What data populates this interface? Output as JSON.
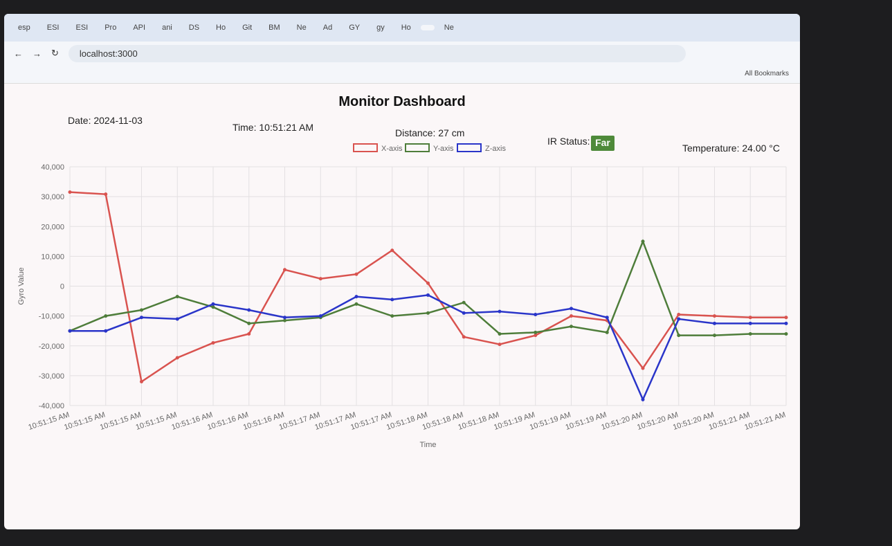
{
  "browser": {
    "tabs": [
      "esp",
      "ESI",
      "ESI",
      "Pro",
      "API",
      "ani",
      "DS",
      "Ho",
      "Git",
      "BM",
      "Ne",
      "Ad",
      "GY",
      "gy",
      "Ho",
      "",
      "Ne"
    ],
    "url": "localhost:3000",
    "bookmarks": "All Bookmarks"
  },
  "dashboard": {
    "title": "Monitor Dashboard",
    "date": "Date: 2024-11-03",
    "time": "Time: 10:51:21 AM",
    "distance": "Distance: 27 cm",
    "ir_label": "IR Status:",
    "ir_status": "Far",
    "temperature": "Temperature: 24.00 °C"
  },
  "chart_data": {
    "type": "line",
    "x_label": "Time",
    "y_label": "Gyro Value",
    "categories": [
      "10:51:15 AM",
      "10:51:15 AM",
      "10:51:15 AM",
      "10:51:15 AM",
      "10:51:16 AM",
      "10:51:16 AM",
      "10:51:16 AM",
      "10:51:17 AM",
      "10:51:17 AM",
      "10:51:17 AM",
      "10:51:18 AM",
      "10:51:18 AM",
      "10:51:18 AM",
      "10:51:19 AM",
      "10:51:19 AM",
      "10:51:19 AM",
      "10:51:20 AM",
      "10:51:20 AM",
      "10:51:20 AM",
      "10:51:21 AM",
      "10:51:21 AM"
    ],
    "series": [
      {
        "name": "X-axis",
        "color": "#d9534f",
        "values": [
          31500,
          30800,
          -32000,
          -24000,
          -19000,
          -16000,
          5500,
          2500,
          4000,
          12000,
          1000,
          -17000,
          -19500,
          -16500,
          -10000,
          -11500,
          -27500,
          -9500,
          -10000,
          -10500,
          -10500
        ]
      },
      {
        "name": "Y-axis",
        "color": "#4e7d3a",
        "values": [
          -15000,
          -10000,
          -8000,
          -3500,
          -7000,
          -12500,
          -11500,
          -10500,
          -6000,
          -10000,
          -9000,
          -5500,
          -16000,
          -15500,
          -13500,
          -15500,
          15000,
          -16500,
          -16500,
          -16000,
          -16000
        ]
      },
      {
        "name": "Z-axis",
        "color": "#2a35c9",
        "values": [
          -15000,
          -15000,
          -10500,
          -11000,
          -6000,
          -8000,
          -10500,
          -10000,
          -3500,
          -4500,
          -3000,
          -9000,
          -8500,
          -9500,
          -7500,
          -10500,
          -38000,
          -11000,
          -12500,
          -12500,
          -12500
        ]
      }
    ],
    "ylim": [
      -40000,
      40000
    ],
    "yticks": [
      {
        "value": -40000,
        "label": "-40,000"
      },
      {
        "value": -30000,
        "label": "-30,000"
      },
      {
        "value": -20000,
        "label": "-20,000"
      },
      {
        "value": -10000,
        "label": "-10,000"
      },
      0,
      {
        "value": 10000,
        "label": "10,000"
      },
      {
        "value": 20000,
        "label": "20,000"
      },
      {
        "value": 30000,
        "label": "30,000"
      },
      {
        "value": 40000,
        "label": "40,000"
      }
    ],
    "grid": true
  }
}
